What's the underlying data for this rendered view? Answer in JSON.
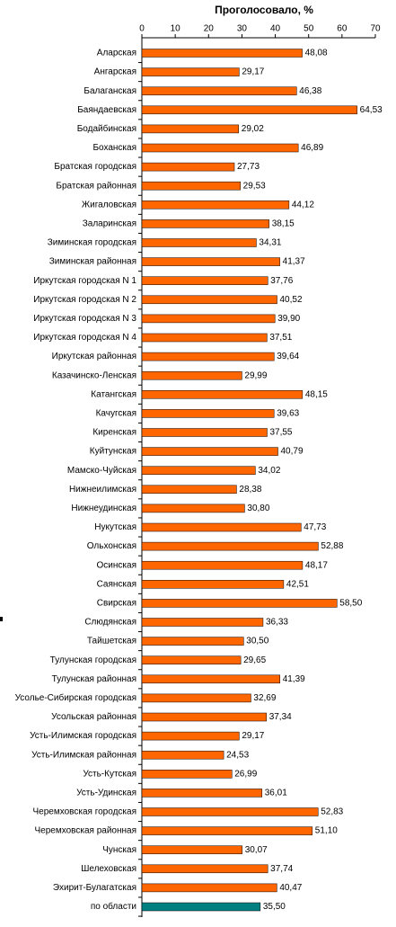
{
  "chart_data": {
    "type": "hbar",
    "title": "Проголосовало, %",
    "categories": [
      "Аларская",
      "Ангарская",
      "Балаганская",
      "Баяндаевская",
      "Бодайбинская",
      "Боханская",
      "Братская городская",
      "Братская районная",
      "Жигаловская",
      "Заларинская",
      "Зиминская городская",
      "Зиминская районная",
      "Иркутская городская N 1",
      "Иркутская городская N 2",
      "Иркутская городская N 3",
      "Иркутская городская N 4",
      "Иркутская районная",
      "Казачинско-Ленская",
      "Катангская",
      "Качугская",
      "Киренская",
      "Куйтунская",
      "Мамско-Чуйская",
      "Нижнеилимская",
      "Нижнеудинская",
      "Нукутская",
      "Ольхонская",
      "Осинская",
      "Саянская",
      "Свирская",
      "Слюдянская",
      "Тайшетская",
      "Тулунская городская",
      "Тулунская районная",
      "Усолье-Сибирская городская",
      "Усольская районная",
      "Усть-Илимская городская",
      "Усть-Илимская районная",
      "Усть-Кутская",
      "Усть-Удинская",
      "Черемховская городская",
      "Черемховская районная",
      "Чунская",
      "Шелеховская",
      "Эхирит-Булагатская",
      "по области"
    ],
    "values": [
      48.08,
      29.17,
      46.38,
      64.53,
      29.02,
      46.89,
      27.73,
      29.53,
      44.12,
      38.15,
      34.31,
      41.37,
      37.76,
      40.52,
      39.9,
      37.51,
      39.64,
      29.99,
      48.15,
      39.63,
      37.55,
      40.79,
      34.02,
      28.38,
      30.8,
      47.73,
      52.88,
      48.17,
      42.51,
      58.5,
      36.33,
      30.5,
      29.65,
      41.39,
      32.69,
      37.34,
      29.17,
      24.53,
      26.99,
      36.01,
      52.83,
      51.1,
      30.07,
      37.74,
      40.47,
      35.5
    ],
    "value_labels": [
      "48,08",
      "29,17",
      "46,38",
      "64,53",
      "29,02",
      "46,89",
      "27,73",
      "29,53",
      "44,12",
      "38,15",
      "34,31",
      "41,37",
      "37,76",
      "40,52",
      "39,90",
      "37,51",
      "39,64",
      "29,99",
      "48,15",
      "39,63",
      "37,55",
      "40,79",
      "34,02",
      "28,38",
      "30,80",
      "47,73",
      "52,88",
      "48,17",
      "42,51",
      "58,50",
      "36,33",
      "30,50",
      "29,65",
      "41,39",
      "32,69",
      "37,34",
      "29,17",
      "24,53",
      "26,99",
      "36,01",
      "52,83",
      "51,10",
      "30,07",
      "37,74",
      "40,47",
      "35,50"
    ],
    "colors": [
      "#ff6600",
      "#ff6600",
      "#ff6600",
      "#ff6600",
      "#ff6600",
      "#ff6600",
      "#ff6600",
      "#ff6600",
      "#ff6600",
      "#ff6600",
      "#ff6600",
      "#ff6600",
      "#ff6600",
      "#ff6600",
      "#ff6600",
      "#ff6600",
      "#ff6600",
      "#ff6600",
      "#ff6600",
      "#ff6600",
      "#ff6600",
      "#ff6600",
      "#ff6600",
      "#ff6600",
      "#ff6600",
      "#ff6600",
      "#ff6600",
      "#ff6600",
      "#ff6600",
      "#ff6600",
      "#ff6600",
      "#ff6600",
      "#ff6600",
      "#ff6600",
      "#ff6600",
      "#ff6600",
      "#ff6600",
      "#ff6600",
      "#ff6600",
      "#ff6600",
      "#ff6600",
      "#ff6600",
      "#ff6600",
      "#ff6600",
      "#ff6600",
      "#008080"
    ],
    "xlim": [
      0,
      70
    ],
    "xticks": [
      0,
      10,
      20,
      30,
      40,
      50,
      60,
      70
    ]
  }
}
